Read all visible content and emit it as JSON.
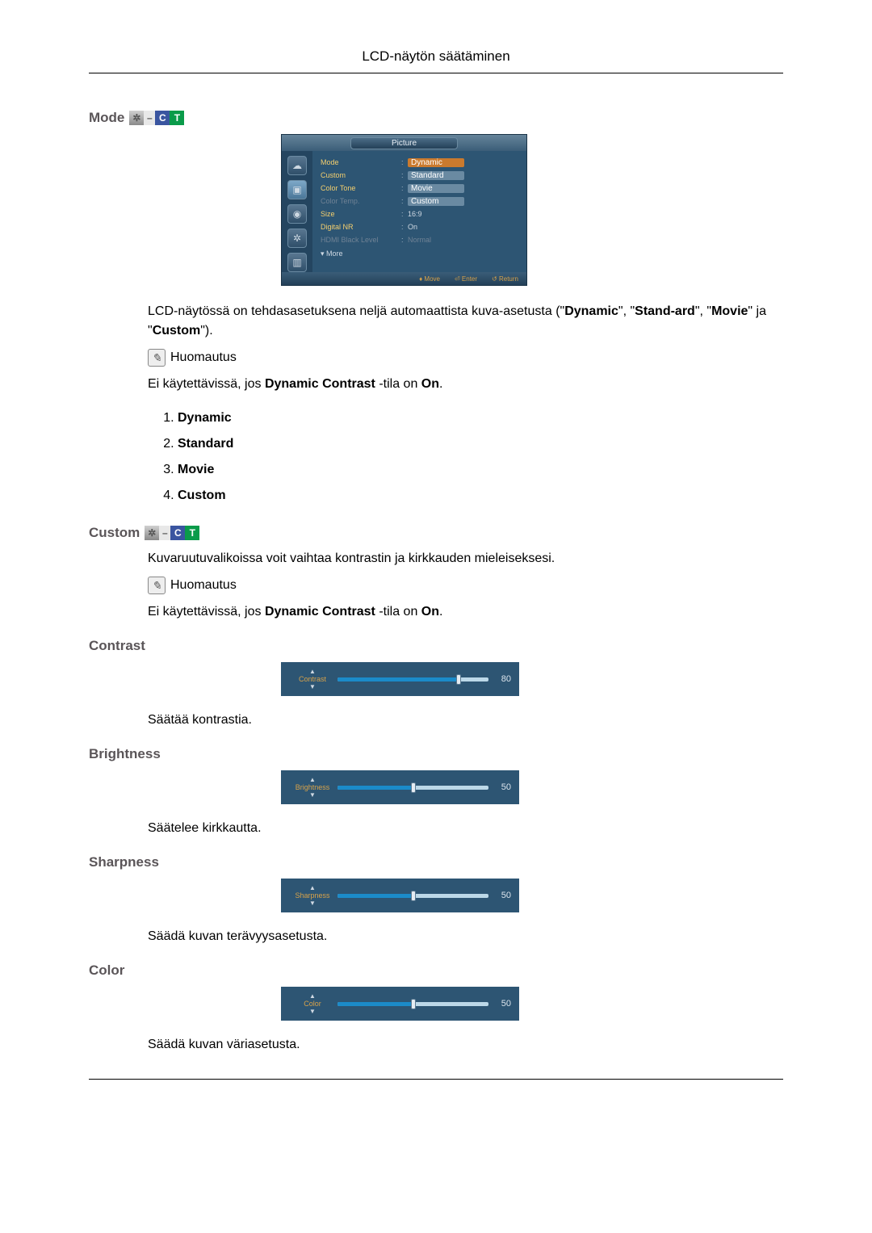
{
  "page_title": "LCD-näytön säätäminen",
  "sections": {
    "mode": {
      "heading": "Mode",
      "description_parts": [
        "LCD-näytössä on tehdasasetuksena neljä automaattista kuva-asetusta (\"",
        "Dynamic",
        "\", \"",
        "Stand-ard",
        "\", \"",
        "Movie",
        "\" ja \"",
        "Custom",
        "\")."
      ],
      "note_label": "Huomautus",
      "note_text_parts": [
        "Ei käytettävissä, jos ",
        "Dynamic Contrast",
        " -tila on ",
        "On",
        "."
      ],
      "list": [
        "Dynamic",
        "Standard",
        "Movie",
        "Custom"
      ]
    },
    "custom": {
      "heading": "Custom",
      "description": "Kuvaruutuvalikoissa voit vaihtaa kontrastin ja kirkkauden mieleiseksesi.",
      "note_label": "Huomautus",
      "note_text_parts": [
        "Ei käytettävissä, jos ",
        "Dynamic Contrast",
        " -tila on ",
        "On",
        "."
      ]
    },
    "contrast": {
      "heading": "Contrast",
      "description": "Säätää kontrastia."
    },
    "brightness": {
      "heading": "Brightness",
      "description": "Säätelee kirkkautta."
    },
    "sharpness": {
      "heading": "Sharpness",
      "description": "Säädä kuvan terävyysasetusta."
    },
    "color": {
      "heading": "Color",
      "description": "Säädä kuvan väriasetusta."
    }
  },
  "osd": {
    "title": "Picture",
    "rows": [
      {
        "label": "Mode",
        "style": "normal",
        "options": [
          "Dynamic",
          "Standard",
          "Movie",
          "Custom"
        ],
        "highlighted": 0,
        "selected": 1
      },
      {
        "label": "Custom",
        "style": "normal",
        "value": ""
      },
      {
        "label": "Color Tone",
        "style": "normal",
        "value": ""
      },
      {
        "label": "Color Temp.",
        "style": "dim",
        "value": ""
      },
      {
        "label": "Size",
        "style": "normal",
        "value": "16:9"
      },
      {
        "label": "Digital NR",
        "style": "normal",
        "value": "On"
      },
      {
        "label": "HDMI Black Level",
        "style": "dim",
        "value": "Normal"
      }
    ],
    "more": "▾ More",
    "footer": {
      "move": "Move",
      "enter": "Enter",
      "return": "Return"
    },
    "colors": {
      "panel_bg": "#2d5573",
      "title_grad_top": "#65849a",
      "title_grad_bot": "#3b5d78",
      "label_color": "#f4cf6e",
      "dim_label_color": "#6f8295",
      "highlight_bg": "#ca7a2e",
      "selected_bg": "#6a8aa2"
    }
  },
  "sliders": {
    "contrast": {
      "label": "Contrast",
      "value": 80,
      "min": 0,
      "max": 100,
      "fill_color": "#1b8bc9",
      "track_color": "#bcd8e8",
      "panel_bg": "#2d5573"
    },
    "brightness": {
      "label": "Brightness",
      "value": 50,
      "min": 0,
      "max": 100,
      "fill_color": "#1b8bc9",
      "track_color": "#bcd8e8",
      "panel_bg": "#2d5573"
    },
    "sharpness": {
      "label": "Sharpness",
      "value": 50,
      "min": 0,
      "max": 100,
      "fill_color": "#1b8bc9",
      "track_color": "#bcd8e8",
      "panel_bg": "#2d5573"
    },
    "color": {
      "label": "Color",
      "value": 50,
      "min": 0,
      "max": 100,
      "fill_color": "#1b8bc9",
      "track_color": "#bcd8e8",
      "panel_bg": "#2d5573"
    }
  },
  "icon_labels": {
    "c": "C",
    "t": "T",
    "dash": "–"
  }
}
